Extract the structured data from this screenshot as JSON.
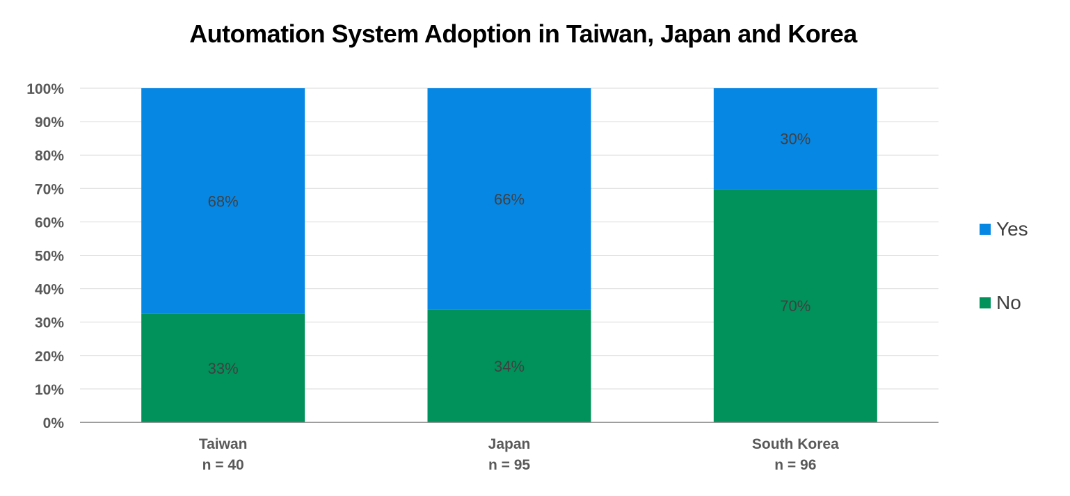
{
  "chart_data": {
    "type": "bar",
    "stacked": true,
    "title": "Automation System Adoption in Taiwan, Japan and Korea",
    "categories": [
      "Taiwan",
      "Japan",
      "South Korea"
    ],
    "category_sublabels": [
      "n = 40",
      "n = 95",
      "n = 96"
    ],
    "series": [
      {
        "name": "No",
        "color": "#00925A",
        "values": [
          32.5,
          33.7,
          69.8
        ],
        "labels": [
          "33%",
          "34%",
          "70%"
        ]
      },
      {
        "name": "Yes",
        "color": "#0787E4",
        "values": [
          67.5,
          66.3,
          30.2
        ],
        "labels": [
          "68%",
          "66%",
          "30%"
        ]
      }
    ],
    "ylim": [
      0,
      100
    ],
    "yticks": [
      "0%",
      "10%",
      "20%",
      "30%",
      "40%",
      "50%",
      "60%",
      "70%",
      "80%",
      "90%",
      "100%"
    ],
    "grid": true,
    "legend_position": "right",
    "legend_order": [
      "Yes",
      "No"
    ]
  }
}
